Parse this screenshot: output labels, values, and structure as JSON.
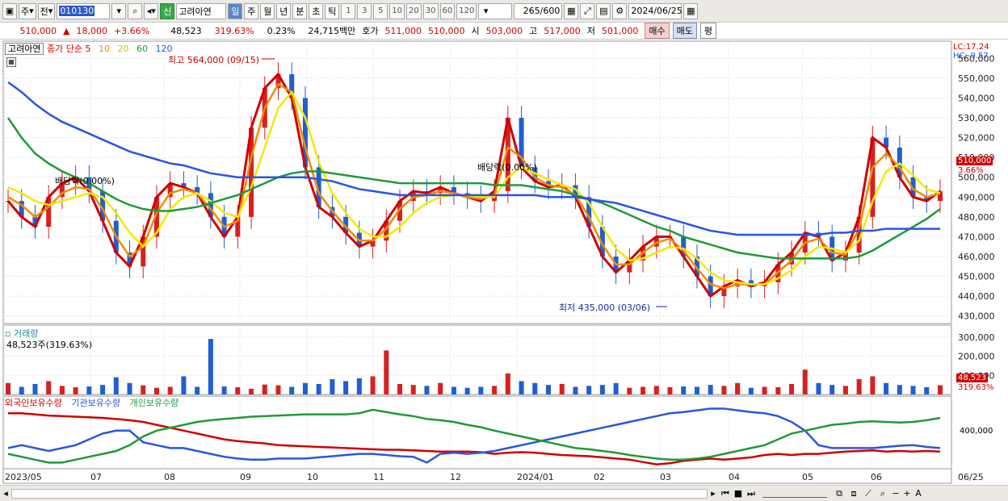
{
  "toolbar": {
    "mode": "주",
    "market": "전",
    "code": "010130",
    "badge": "신",
    "stock_name": "고려아연",
    "periods": [
      "일",
      "주",
      "월",
      "년",
      "분",
      "초",
      "틱"
    ],
    "active_period": "일",
    "numbers": [
      "1",
      "3",
      "5",
      "10",
      "20",
      "30",
      "60",
      "120"
    ],
    "count": "265",
    "count_total": "/600",
    "date": "2024/06/25"
  },
  "quote": {
    "price": "510,000",
    "change": "18,000",
    "change_pct": "+3.66%",
    "volume": "48,523",
    "vol_ratio": "319.63%",
    "turnover": "0.23%",
    "amount": "24,715백만",
    "ask_label": "호가",
    "ask1": "511,000",
    "ask2": "510,000",
    "open_label": "시",
    "open": "503,000",
    "high_label": "고",
    "high": "517,000",
    "low_label": "저",
    "low": "501,000",
    "buy": "매수",
    "sell": "매도",
    "avg": "평"
  },
  "price_legend": {
    "stock": "고려아연",
    "ma_label": "종가 단순",
    "ma5": "5",
    "ma10": "10",
    "ma20": "20",
    "ma60": "60",
    "ma120": "120"
  },
  "annotations": {
    "high_note": "최고 564,000 (09/15)",
    "low_note": "최저 435,000 (03/06)",
    "dividend1": "배당락(0.00%)",
    "dividend2": "배당락(0.00%)",
    "lc": "LC:17.24",
    "hc": "HC:-9.57",
    "last_price_tag": "510,000",
    "last_pct_tag": "3.66%"
  },
  "volume_legend": {
    "title": "거래량",
    "value": "48,523주(319.63%)",
    "last_tag": "48,523",
    "last_pct": "319.63%"
  },
  "holdings_legend": {
    "s1": "외국인보유수량",
    "s2": "기관보유수량",
    "s3": "개인보유수량",
    "axis_label": "400,000"
  },
  "colors": {
    "up": "#d82020",
    "down": "#1f5fd0",
    "ma5": "#d00000",
    "ma10": "#f08c00",
    "ma20": "#f5e800",
    "ma60": "#1e9a3a",
    "ma120": "#2a55e0"
  },
  "chart_data": [
    {
      "type": "line",
      "name": "price",
      "y_ticks": [
        "560,000",
        "550,000",
        "540,000",
        "530,000",
        "520,000",
        "510,000",
        "500,000",
        "490,000",
        "480,000",
        "470,000",
        "460,000",
        "450,000",
        "440,000",
        "430,000"
      ],
      "ylim": [
        427000,
        563000
      ],
      "x_labels": [
        "2023/05",
        "07",
        "08",
        "09",
        "10",
        "11",
        "12",
        "2024/01",
        "02",
        "03",
        "04",
        "05",
        "06",
        "06/25"
      ],
      "series": [
        {
          "name": "5",
          "values": [
            488,
            480,
            475,
            490,
            497,
            500,
            493,
            478,
            462,
            455,
            470,
            490,
            497,
            495,
            492,
            480,
            470,
            480,
            525,
            545,
            552,
            540,
            505,
            485,
            480,
            472,
            465,
            468,
            478,
            488,
            493,
            492,
            495,
            492,
            490,
            488,
            493,
            530,
            505,
            498,
            495,
            496,
            490,
            475,
            460,
            452,
            458,
            465,
            470,
            470,
            460,
            450,
            440,
            445,
            448,
            445,
            447,
            456,
            462,
            472,
            470,
            458,
            462,
            480,
            520,
            515,
            500,
            490,
            488,
            493
          ]
        },
        {
          "name": "10",
          "values": [
            490,
            486,
            480,
            485,
            492,
            495,
            494,
            484,
            470,
            460,
            465,
            482,
            492,
            494,
            492,
            484,
            475,
            478,
            510,
            535,
            547,
            543,
            515,
            492,
            483,
            475,
            468,
            468,
            474,
            484,
            490,
            491,
            493,
            492,
            490,
            489,
            491,
            515,
            510,
            500,
            496,
            495,
            491,
            480,
            466,
            456,
            456,
            462,
            467,
            469,
            463,
            454,
            446,
            444,
            446,
            446,
            446,
            452,
            458,
            467,
            469,
            462,
            461,
            474,
            505,
            512,
            505,
            494,
            490,
            492
          ]
        },
        {
          "name": "20",
          "values": [
            495,
            492,
            488,
            486,
            488,
            490,
            492,
            490,
            482,
            472,
            465,
            472,
            484,
            490,
            492,
            488,
            482,
            480,
            495,
            515,
            535,
            543,
            530,
            508,
            492,
            482,
            474,
            470,
            470,
            475,
            482,
            487,
            490,
            491,
            491,
            490,
            490,
            500,
            505,
            502,
            499,
            496,
            494,
            487,
            475,
            464,
            458,
            459,
            462,
            465,
            464,
            459,
            452,
            448,
            447,
            446,
            446,
            449,
            453,
            460,
            465,
            464,
            462,
            468,
            488,
            503,
            507,
            501,
            494,
            492
          ]
        },
        {
          "name": "60",
          "values": [
            530,
            520,
            512,
            507,
            503,
            500,
            497,
            493,
            489,
            486,
            484,
            483,
            483,
            484,
            485,
            487,
            489,
            491,
            494,
            497,
            500,
            502,
            503,
            503,
            502,
            501,
            500,
            499,
            498,
            497,
            497,
            497,
            497,
            497,
            497,
            497,
            496,
            496,
            496,
            495,
            494,
            493,
            491,
            489,
            487,
            484,
            481,
            478,
            475,
            473,
            470,
            468,
            466,
            464,
            462,
            461,
            460,
            459,
            459,
            459,
            459,
            459,
            459,
            460,
            463,
            467,
            471,
            475,
            479,
            484
          ]
        },
        {
          "name": "120",
          "values": [
            548,
            543,
            537,
            532,
            528,
            525,
            522,
            519,
            516,
            513,
            511,
            509,
            507,
            506,
            504,
            502,
            501,
            500,
            500,
            500,
            500,
            500,
            500,
            499,
            498,
            496,
            494,
            493,
            492,
            491,
            491,
            491,
            491,
            491,
            491,
            491,
            491,
            491,
            491,
            491,
            490,
            490,
            490,
            489,
            488,
            487,
            485,
            483,
            481,
            479,
            477,
            475,
            473,
            472,
            471,
            471,
            471,
            471,
            471,
            471,
            471,
            472,
            472,
            473,
            473,
            474,
            474,
            474,
            474,
            474
          ]
        }
      ]
    },
    {
      "type": "bar",
      "name": "volume",
      "y_ticks": [
        "300,000",
        "200,000",
        "100,000"
      ],
      "ylim": [
        0,
        320000
      ],
      "values": [
        60000,
        40000,
        55000,
        70000,
        45000,
        38000,
        42000,
        50000,
        90000,
        60000,
        48000,
        35000,
        40000,
        95000,
        40000,
        290000,
        42000,
        38000,
        30000,
        52000,
        48000,
        40000,
        60000,
        55000,
        80000,
        70000,
        85000,
        95000,
        230000,
        55000,
        50000,
        45000,
        60000,
        40000,
        35000,
        40000,
        45000,
        110000,
        70000,
        60000,
        50000,
        55000,
        40000,
        45000,
        50000,
        60000,
        35000,
        40000,
        45000,
        38000,
        42000,
        40000,
        50000,
        45000,
        60000,
        35000,
        40000,
        38000,
        55000,
        130000,
        60000,
        50000,
        45000,
        80000,
        95000,
        60000,
        50000,
        45000,
        38000,
        48523
      ]
    },
    {
      "type": "line",
      "name": "holdings",
      "y_ticks": [
        "400,000"
      ],
      "series": [
        {
          "name": "외국인보유수량",
          "values": [
            0.9,
            0.9,
            0.88,
            0.86,
            0.85,
            0.84,
            0.83,
            0.82,
            0.8,
            0.78,
            0.75,
            0.7,
            0.65,
            0.6,
            0.55,
            0.5,
            0.45,
            0.42,
            0.4,
            0.38,
            0.35,
            0.34,
            0.33,
            0.32,
            0.31,
            0.3,
            0.29,
            0.28,
            0.27,
            0.27,
            0.26,
            0.25,
            0.24,
            0.24,
            0.24,
            0.23,
            0.2,
            0.22,
            0.23,
            0.22,
            0.2,
            0.18,
            0.17,
            0.16,
            0.14,
            0.12,
            0.1,
            0.06,
            0.02,
            0.04,
            0.08,
            0.1,
            0.12,
            0.1,
            0.12,
            0.14,
            0.18,
            0.2,
            0.18,
            0.2,
            0.2,
            0.22,
            0.24,
            0.25,
            0.26,
            0.24,
            0.25,
            0.24,
            0.25,
            0.24
          ]
        },
        {
          "name": "기관보유수량",
          "values": [
            0.3,
            0.35,
            0.3,
            0.25,
            0.3,
            0.35,
            0.45,
            0.55,
            0.6,
            0.6,
            0.4,
            0.35,
            0.3,
            0.3,
            0.25,
            0.2,
            0.15,
            0.12,
            0.1,
            0.1,
            0.12,
            0.12,
            0.12,
            0.14,
            0.16,
            0.18,
            0.2,
            0.2,
            0.18,
            0.16,
            0.15,
            0.05,
            0.2,
            0.22,
            0.2,
            0.22,
            0.25,
            0.3,
            0.35,
            0.4,
            0.45,
            0.5,
            0.55,
            0.6,
            0.65,
            0.7,
            0.75,
            0.8,
            0.85,
            0.9,
            0.92,
            0.95,
            0.98,
            0.98,
            0.95,
            0.92,
            0.9,
            0.85,
            0.75,
            0.6,
            0.35,
            0.3,
            0.3,
            0.3,
            0.3,
            0.32,
            0.34,
            0.35,
            0.32,
            0.3
          ]
        },
        {
          "name": "개인보유수량",
          "values": [
            0.2,
            0.15,
            0.1,
            0.05,
            0.05,
            0.1,
            0.15,
            0.2,
            0.25,
            0.35,
            0.5,
            0.6,
            0.65,
            0.7,
            0.75,
            0.78,
            0.8,
            0.82,
            0.84,
            0.85,
            0.86,
            0.87,
            0.88,
            0.88,
            0.88,
            0.88,
            0.9,
            0.96,
            0.92,
            0.88,
            0.85,
            0.8,
            0.78,
            0.75,
            0.7,
            0.66,
            0.6,
            0.55,
            0.5,
            0.45,
            0.4,
            0.35,
            0.3,
            0.28,
            0.25,
            0.22,
            0.18,
            0.15,
            0.12,
            0.1,
            0.1,
            0.12,
            0.15,
            0.2,
            0.25,
            0.3,
            0.35,
            0.45,
            0.55,
            0.6,
            0.65,
            0.7,
            0.72,
            0.75,
            0.76,
            0.75,
            0.74,
            0.75,
            0.78,
            0.82
          ]
        }
      ]
    }
  ]
}
